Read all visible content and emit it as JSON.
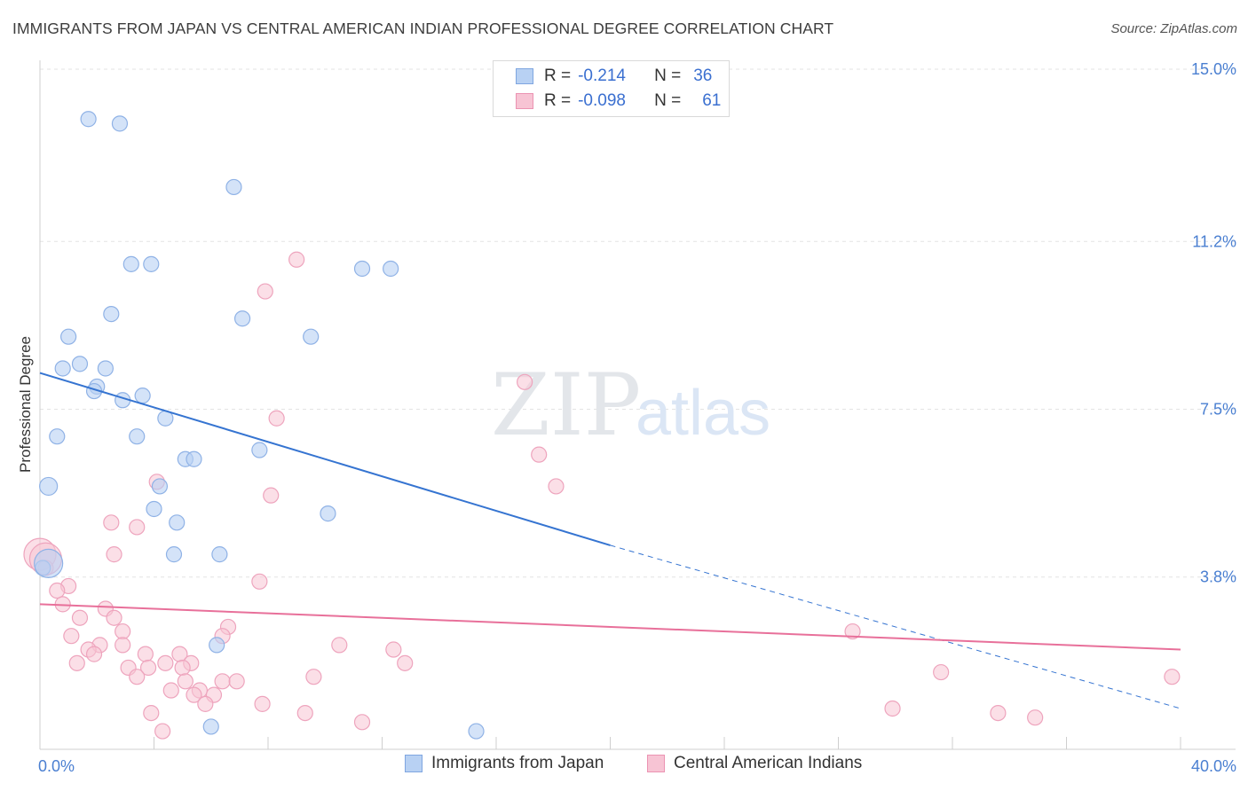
{
  "header": {
    "title": "IMMIGRANTS FROM JAPAN VS CENTRAL AMERICAN INDIAN PROFESSIONAL DEGREE CORRELATION CHART",
    "source": "Source: ZipAtlas.com"
  },
  "watermark": {
    "zip": "ZIP",
    "atlas": "atlas"
  },
  "legend_top": {
    "rows": [
      {
        "r_label": "R =",
        "r_value": "-0.214",
        "n_label": "N =",
        "n_value": "36"
      },
      {
        "r_label": "R =",
        "r_value": "-0.098",
        "n_label": "N =",
        "n_value": "61"
      }
    ]
  },
  "colors": {
    "japan_fill": "#b8d1f3",
    "japan_stroke": "#8fb2e6",
    "japan_line": "#3574d1",
    "cai_fill": "#f7c4d4",
    "cai_stroke": "#eea4bd",
    "cai_line": "#e8709a",
    "grid": "#e3e3e3",
    "tick_text": "#4a7fd1"
  },
  "chart_data": {
    "type": "scatter",
    "title": "IMMIGRANTS FROM JAPAN VS CENTRAL AMERICAN INDIAN PROFESSIONAL DEGREE CORRELATION CHART",
    "xlabel": "",
    "ylabel": "Professional Degree",
    "xlim": [
      0,
      40
    ],
    "ylim": [
      0,
      15.5
    ],
    "x_tick_labels": [
      "0.0%",
      "40.0%"
    ],
    "y_ticks": [
      3.8,
      7.5,
      11.2,
      15.0
    ],
    "y_tick_labels": [
      "3.8%",
      "7.5%",
      "11.2%",
      "15.0%"
    ],
    "grid": true,
    "legend_position": "bottom",
    "series": [
      {
        "name": "Immigrants from Japan",
        "points": [
          [
            1.7,
            13.9
          ],
          [
            2.8,
            13.8
          ],
          [
            6.8,
            12.4
          ],
          [
            3.2,
            10.7
          ],
          [
            3.9,
            10.7
          ],
          [
            11.3,
            10.6
          ],
          [
            12.3,
            10.6
          ],
          [
            2.5,
            9.6
          ],
          [
            7.1,
            9.5
          ],
          [
            9.5,
            9.1
          ],
          [
            1.0,
            9.1
          ],
          [
            1.4,
            8.5
          ],
          [
            0.8,
            8.4
          ],
          [
            2.3,
            8.4
          ],
          [
            2.0,
            8.0
          ],
          [
            1.9,
            7.9
          ],
          [
            2.9,
            7.7
          ],
          [
            3.6,
            7.8
          ],
          [
            4.4,
            7.3
          ],
          [
            0.6,
            6.9
          ],
          [
            3.4,
            6.9
          ],
          [
            7.7,
            6.6
          ],
          [
            5.1,
            6.4
          ],
          [
            5.4,
            6.4
          ],
          [
            0.3,
            5.8
          ],
          [
            4.2,
            5.8
          ],
          [
            4.0,
            5.3
          ],
          [
            10.1,
            5.2
          ],
          [
            4.8,
            5.0
          ],
          [
            4.7,
            4.3
          ],
          [
            6.3,
            4.3
          ],
          [
            0.1,
            4.0
          ],
          [
            6.2,
            2.3
          ],
          [
            6.0,
            0.5
          ],
          [
            15.3,
            0.4
          ],
          [
            0.3,
            4.1
          ]
        ],
        "trend": {
          "x0": 0,
          "y0": 8.3,
          "x1": 20,
          "y1": 4.5,
          "dash_x1": 40,
          "dash_y1": 0.9
        }
      },
      {
        "name": "Central American Indians",
        "points": [
          [
            9.0,
            10.8
          ],
          [
            7.9,
            10.1
          ],
          [
            17.0,
            8.1
          ],
          [
            8.3,
            7.3
          ],
          [
            17.5,
            6.5
          ],
          [
            18.1,
            5.8
          ],
          [
            4.1,
            5.9
          ],
          [
            8.1,
            5.6
          ],
          [
            2.5,
            5.0
          ],
          [
            3.4,
            4.9
          ],
          [
            2.6,
            4.3
          ],
          [
            0.0,
            4.3
          ],
          [
            0.2,
            4.0
          ],
          [
            7.7,
            3.7
          ],
          [
            1.0,
            3.6
          ],
          [
            0.6,
            3.5
          ],
          [
            0.8,
            3.2
          ],
          [
            2.3,
            3.1
          ],
          [
            1.4,
            2.9
          ],
          [
            2.6,
            2.9
          ],
          [
            6.6,
            2.7
          ],
          [
            2.9,
            2.6
          ],
          [
            6.4,
            2.5
          ],
          [
            1.1,
            2.5
          ],
          [
            2.1,
            2.3
          ],
          [
            2.9,
            2.3
          ],
          [
            10.5,
            2.3
          ],
          [
            12.4,
            2.2
          ],
          [
            1.7,
            2.2
          ],
          [
            1.9,
            2.1
          ],
          [
            3.7,
            2.1
          ],
          [
            4.9,
            2.1
          ],
          [
            12.8,
            1.9
          ],
          [
            1.3,
            1.9
          ],
          [
            4.4,
            1.9
          ],
          [
            5.3,
            1.9
          ],
          [
            3.1,
            1.8
          ],
          [
            3.8,
            1.8
          ],
          [
            5.0,
            1.8
          ],
          [
            3.4,
            1.6
          ],
          [
            9.6,
            1.6
          ],
          [
            5.1,
            1.5
          ],
          [
            6.4,
            1.5
          ],
          [
            6.9,
            1.5
          ],
          [
            4.6,
            1.3
          ],
          [
            5.6,
            1.3
          ],
          [
            5.4,
            1.2
          ],
          [
            6.1,
            1.2
          ],
          [
            5.8,
            1.0
          ],
          [
            7.8,
            1.0
          ],
          [
            3.9,
            0.8
          ],
          [
            9.3,
            0.8
          ],
          [
            11.3,
            0.6
          ],
          [
            4.3,
            0.4
          ],
          [
            28.5,
            2.6
          ],
          [
            31.6,
            1.7
          ],
          [
            39.7,
            1.6
          ],
          [
            29.9,
            0.9
          ],
          [
            33.6,
            0.8
          ],
          [
            34.9,
            0.7
          ],
          [
            0.2,
            4.2
          ]
        ],
        "trend": {
          "x0": 0,
          "y0": 3.2,
          "x1": 40,
          "y1": 2.2
        }
      }
    ]
  },
  "legend_bottom": {
    "items": [
      {
        "label": "Immigrants from Japan"
      },
      {
        "label": "Central American Indians"
      }
    ]
  }
}
